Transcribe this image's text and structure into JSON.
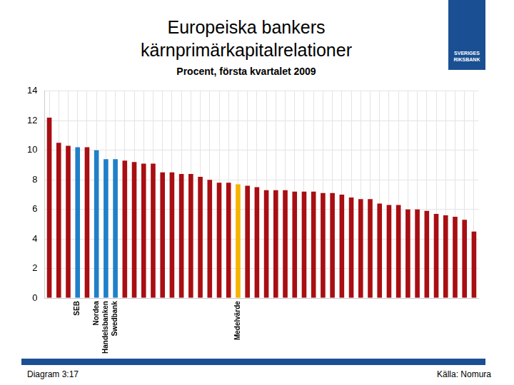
{
  "chart_data": {
    "type": "bar",
    "title": "Europeiska bankers kärnprimärkapitalrelationer",
    "subtitle": "Procent, första kvartalet 2009",
    "note": "Diagram 3:17",
    "source": "Källa: Nomura",
    "logo": "SVERIGES RIKSBANK",
    "categories": [
      null,
      null,
      null,
      "SEB",
      null,
      "Nordea",
      "Handelsbanken",
      "Swedbank",
      null,
      null,
      null,
      null,
      null,
      null,
      null,
      null,
      null,
      null,
      null,
      null,
      "Medelvärde",
      null,
      null,
      null,
      null,
      null,
      null,
      null,
      null,
      null,
      null,
      null,
      null,
      null,
      null,
      null,
      null,
      null,
      null,
      null,
      null,
      null,
      null,
      null,
      null,
      null
    ],
    "values": [
      12.2,
      10.5,
      10.3,
      10.2,
      10.2,
      10.0,
      9.4,
      9.4,
      9.3,
      9.2,
      9.1,
      9.1,
      8.5,
      8.5,
      8.4,
      8.4,
      8.2,
      8.0,
      7.8,
      7.8,
      7.7,
      7.6,
      7.5,
      7.3,
      7.3,
      7.3,
      7.2,
      7.2,
      7.2,
      7.1,
      7.1,
      7.0,
      6.8,
      6.7,
      6.7,
      6.4,
      6.3,
      6.3,
      6.0,
      6.0,
      5.9,
      5.7,
      5.6,
      5.5,
      5.3,
      4.5
    ],
    "colors": [
      "#a80e12",
      "#a80e12",
      "#a80e12",
      "#1f80c8",
      "#a80e12",
      "#1f80c8",
      "#1f80c8",
      "#1f80c8",
      "#a80e12",
      "#a80e12",
      "#a80e12",
      "#a80e12",
      "#a80e12",
      "#a80e12",
      "#a80e12",
      "#a80e12",
      "#a80e12",
      "#a80e12",
      "#a80e12",
      "#a80e12",
      "#f5b400",
      "#a80e12",
      "#a80e12",
      "#a80e12",
      "#a80e12",
      "#a80e12",
      "#a80e12",
      "#a80e12",
      "#a80e12",
      "#a80e12",
      "#a80e12",
      "#a80e12",
      "#a80e12",
      "#a80e12",
      "#a80e12",
      "#a80e12",
      "#a80e12",
      "#a80e12",
      "#a80e12",
      "#a80e12",
      "#a80e12",
      "#a80e12",
      "#a80e12",
      "#a80e12",
      "#a80e12",
      "#a80e12"
    ],
    "ylim": [
      0,
      14
    ],
    "yticks": [
      0,
      2,
      4,
      6,
      8,
      10,
      12,
      14
    ],
    "grid": true
  }
}
